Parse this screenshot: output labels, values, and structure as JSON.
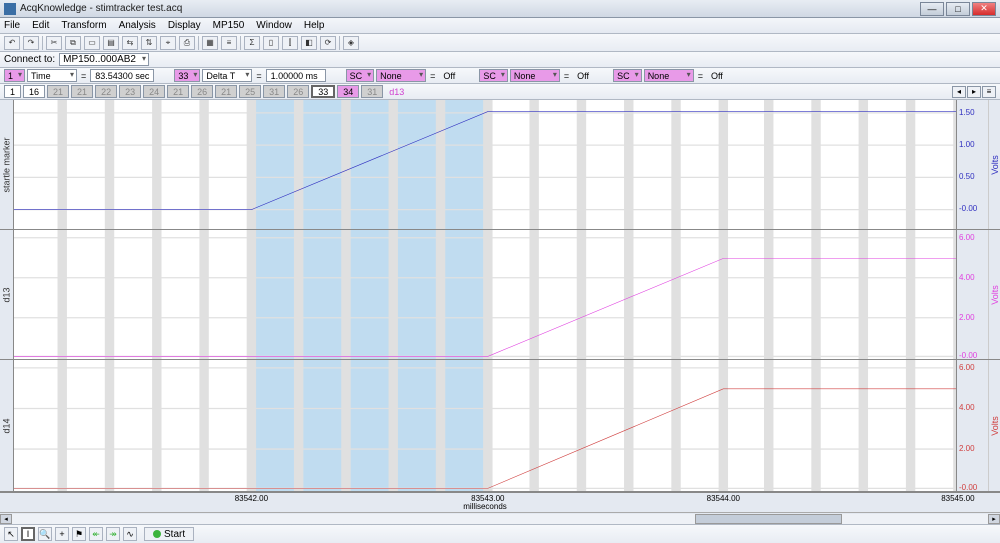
{
  "titlebar": {
    "title": "AcqKnowledge - stimtracker test.acq"
  },
  "menu": [
    "File",
    "Edit",
    "Transform",
    "Analysis",
    "Display",
    "MP150",
    "Window",
    "Help"
  ],
  "connect": {
    "label": "Connect to:",
    "value": "MP150..000AB2"
  },
  "measure_groups": [
    {
      "ch": "1",
      "kind": "Time",
      "val": "83.54300 sec"
    },
    {
      "ch": "33",
      "kind": "Delta T",
      "val": "1.00000 ms"
    },
    {
      "ch": "SC",
      "kind": "None",
      "val": "Off"
    },
    {
      "ch": "SC",
      "kind": "None",
      "val": "Off"
    },
    {
      "ch": "SC",
      "kind": "None",
      "val": "Off"
    }
  ],
  "tabs": {
    "items": [
      {
        "l": "1",
        "c": "normal"
      },
      {
        "l": "16",
        "c": "normal"
      },
      {
        "l": "21",
        "c": "dark"
      },
      {
        "l": "21",
        "c": "dark"
      },
      {
        "l": "22",
        "c": "dark"
      },
      {
        "l": "23",
        "c": "dark"
      },
      {
        "l": "24",
        "c": "dark"
      },
      {
        "l": "21",
        "c": "dark"
      },
      {
        "l": "26",
        "c": "dark"
      },
      {
        "l": "21",
        "c": "dark"
      },
      {
        "l": "25",
        "c": "dark"
      },
      {
        "l": "31",
        "c": "dark"
      },
      {
        "l": "26",
        "c": "dark"
      },
      {
        "l": "33",
        "c": "sel"
      },
      {
        "l": "34",
        "c": "pink"
      },
      {
        "l": "31",
        "c": "dark"
      }
    ],
    "label": "d13"
  },
  "charts": {
    "xaxis": {
      "label": "milliseconds",
      "ticks": [
        {
          "v": "83542.00",
          "pos": 25.2
        },
        {
          "v": "83543.00",
          "pos": 50.3
        },
        {
          "v": "83544.00",
          "pos": 75.3
        },
        {
          "v": "83545.00",
          "pos": 100.2
        }
      ],
      "sel_start": 25.2,
      "sel_end": 50.3
    },
    "panels": [
      {
        "ylabel": "startle marker",
        "unit": "Volts",
        "color": "#3030c0",
        "yticks": [
          {
            "v": "1.50",
            "pos": 10
          },
          {
            "v": "1.00",
            "pos": 35
          },
          {
            "v": "0.50",
            "pos": 60
          },
          {
            "v": "-0.00",
            "pos": 85
          }
        ],
        "line": [
          [
            0,
            85
          ],
          [
            25.2,
            85
          ],
          [
            50.3,
            9
          ],
          [
            100,
            9
          ]
        ]
      },
      {
        "ylabel": "d13",
        "unit": "Volts",
        "color": "#e040e0",
        "yticks": [
          {
            "v": "6.00",
            "pos": 6
          },
          {
            "v": "4.00",
            "pos": 37
          },
          {
            "v": "2.00",
            "pos": 68
          },
          {
            "v": "-0.00",
            "pos": 98
          }
        ],
        "line": [
          [
            0,
            98
          ],
          [
            50.3,
            98
          ],
          [
            75.3,
            22
          ],
          [
            100,
            22
          ]
        ]
      },
      {
        "ylabel": "d14",
        "unit": "Volts",
        "color": "#d04040",
        "yticks": [
          {
            "v": "6.00",
            "pos": 6
          },
          {
            "v": "4.00",
            "pos": 37
          },
          {
            "v": "2.00",
            "pos": 68
          },
          {
            "v": "-0.00",
            "pos": 98
          }
        ],
        "line": [
          [
            0,
            98
          ],
          [
            50.3,
            98
          ],
          [
            75.3,
            22
          ],
          [
            100,
            22
          ]
        ]
      }
    ]
  },
  "bottom": {
    "start": "Start"
  }
}
